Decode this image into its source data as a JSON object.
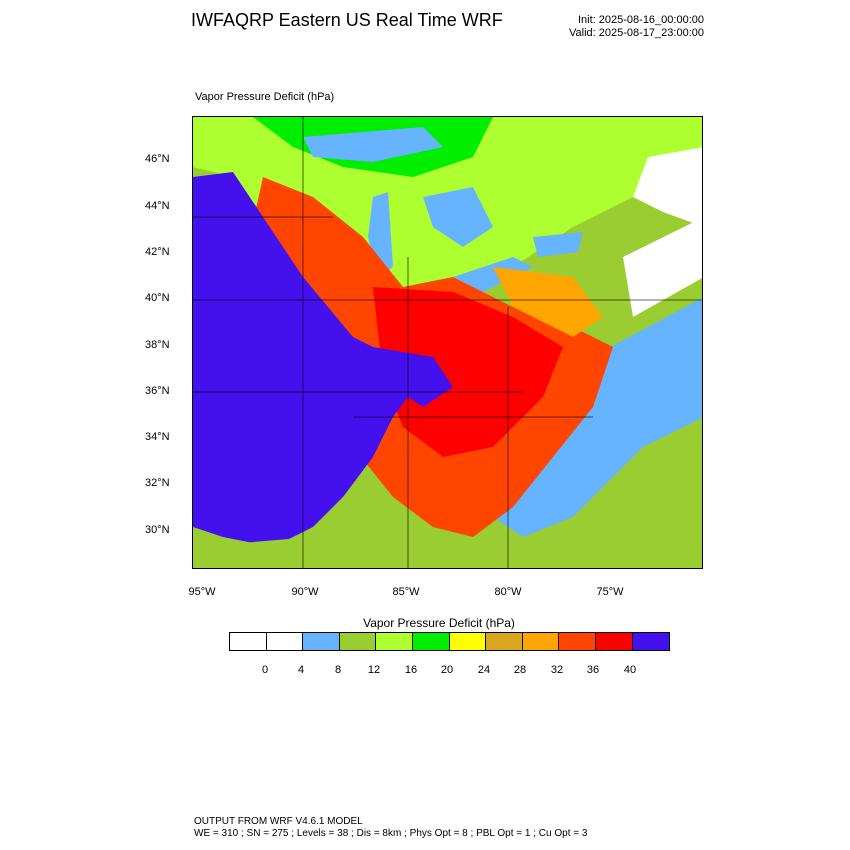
{
  "header": {
    "title": "IWFAQRP Eastern US Real Time WRF",
    "init": "Init: 2025-08-16_00:00:00",
    "valid": "Valid: 2025-08-17_23:00:00"
  },
  "plot": {
    "field_label": "Vapor Pressure Deficit   (hPa)",
    "lat_labels": [
      "46°N",
      "44°N",
      "42°N",
      "40°N",
      "38°N",
      "36°N",
      "34°N",
      "32°N",
      "30°N"
    ],
    "lon_labels": [
      "95°W",
      "90°W",
      "85°W",
      "80°W",
      "75°W"
    ]
  },
  "legend": {
    "title": "Vapor Pressure Deficit  (hPa)",
    "ticks": [
      "0",
      "4",
      "8",
      "12",
      "16",
      "20",
      "24",
      "28",
      "32",
      "36",
      "40"
    ],
    "colors": [
      "#ffffff",
      "#ffffff",
      "#66b3ff",
      "#9acd32",
      "#adff2f",
      "#00ee00",
      "#ffff00",
      "#daa520",
      "#ffa500",
      "#ff4500",
      "#ff0000",
      "#4411ee"
    ]
  },
  "footer": {
    "line1": "OUTPUT FROM WRF V4.6.1 MODEL",
    "line2": "WE = 310 ; SN = 275 ; Levels = 38 ; Dis = 8km ; Phys Opt = 8 ; PBL Opt = 1 ; Cu Opt = 3"
  }
}
